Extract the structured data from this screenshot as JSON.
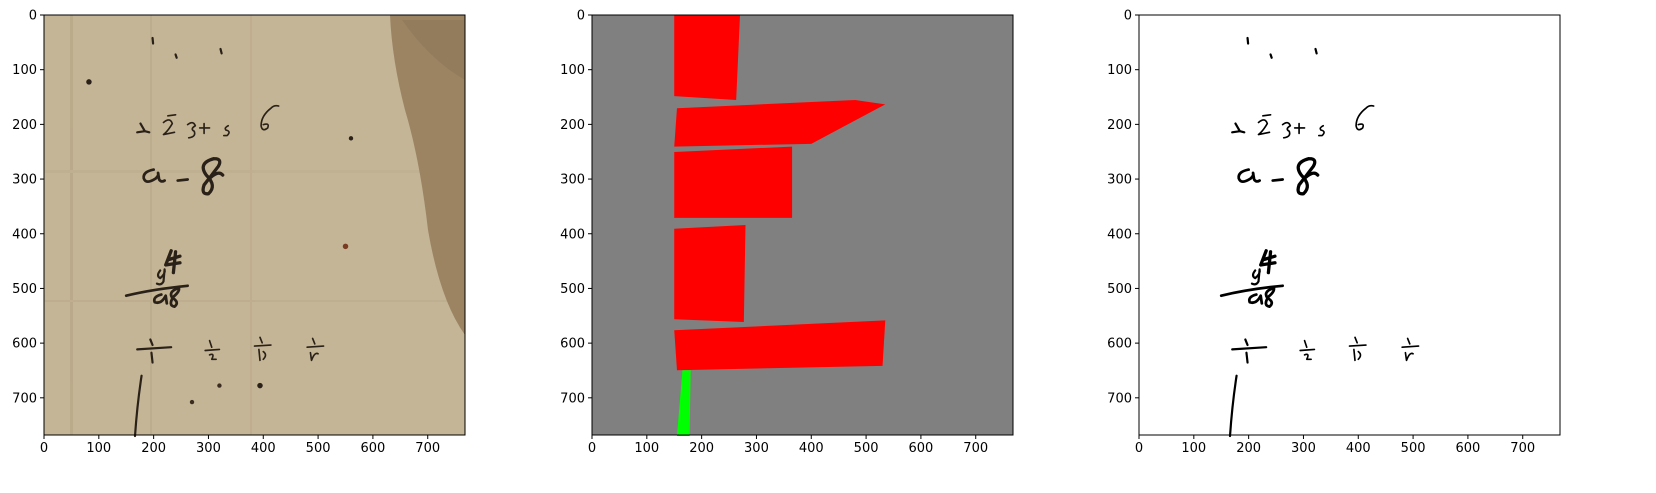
{
  "chart_data": [
    {
      "type": "image",
      "panel": "original-manuscript-photo",
      "x_ticks": [
        0,
        100,
        200,
        300,
        400,
        500,
        600,
        700
      ],
      "y_ticks": [
        0,
        100,
        200,
        300,
        400,
        500,
        600,
        700
      ],
      "xlim": [
        0,
        768
      ],
      "ylim": [
        768,
        0
      ],
      "grid": false,
      "handwriting": {
        "row1": [
          "1",
          "2",
          "3",
          "4",
          "5",
          "6"
        ],
        "row2": "a - 8",
        "row3": "y 4 / a8",
        "row4": [
          "1/1",
          "1/2",
          "1/3",
          "1/5"
        ]
      },
      "colors": {
        "paper": "#c4b596",
        "stain": "#9c8463",
        "ink": "#2a2118"
      }
    },
    {
      "type": "image",
      "panel": "segmentation-mask",
      "x_ticks": [
        0,
        100,
        200,
        300,
        400,
        500,
        600,
        700
      ],
      "y_ticks": [
        0,
        100,
        200,
        300,
        400,
        500,
        600,
        700
      ],
      "xlim": [
        0,
        768
      ],
      "ylim": [
        768,
        0
      ],
      "grid": false,
      "regions": [
        {
          "class": "red",
          "points": [
            [
              150,
              0
            ],
            [
              270,
              0
            ],
            [
              263,
              155
            ],
            [
              150,
              148
            ]
          ]
        },
        {
          "class": "red",
          "points": [
            [
              155,
              170
            ],
            [
              480,
              155
            ],
            [
              535,
              163
            ],
            [
              400,
              235
            ],
            [
              150,
              240
            ]
          ]
        },
        {
          "class": "red",
          "points": [
            [
              150,
              250
            ],
            [
              365,
              240
            ],
            [
              365,
              370
            ],
            [
              150,
              370
            ]
          ]
        },
        {
          "class": "red",
          "points": [
            [
              150,
              390
            ],
            [
              280,
              383
            ],
            [
              277,
              560
            ],
            [
              150,
              555
            ]
          ]
        },
        {
          "class": "red",
          "points": [
            [
              150,
              575
            ],
            [
              535,
              557
            ],
            [
              530,
              640
            ],
            [
              155,
              648
            ]
          ]
        },
        {
          "class": "green",
          "points": [
            [
              165,
              648
            ],
            [
              180,
              648
            ],
            [
              178,
              768
            ],
            [
              155,
              768
            ]
          ]
        }
      ],
      "colors": {
        "background": "#808080",
        "red": "#ff0000",
        "green": "#00ff00"
      }
    },
    {
      "type": "image",
      "panel": "binarized-output",
      "x_ticks": [
        0,
        100,
        200,
        300,
        400,
        500,
        600,
        700
      ],
      "y_ticks": [
        0,
        100,
        200,
        300,
        400,
        500,
        600,
        700
      ],
      "xlim": [
        0,
        768
      ],
      "ylim": [
        768,
        0
      ],
      "grid": false,
      "colors": {
        "background": "#ffffff",
        "ink": "#000000"
      }
    }
  ]
}
